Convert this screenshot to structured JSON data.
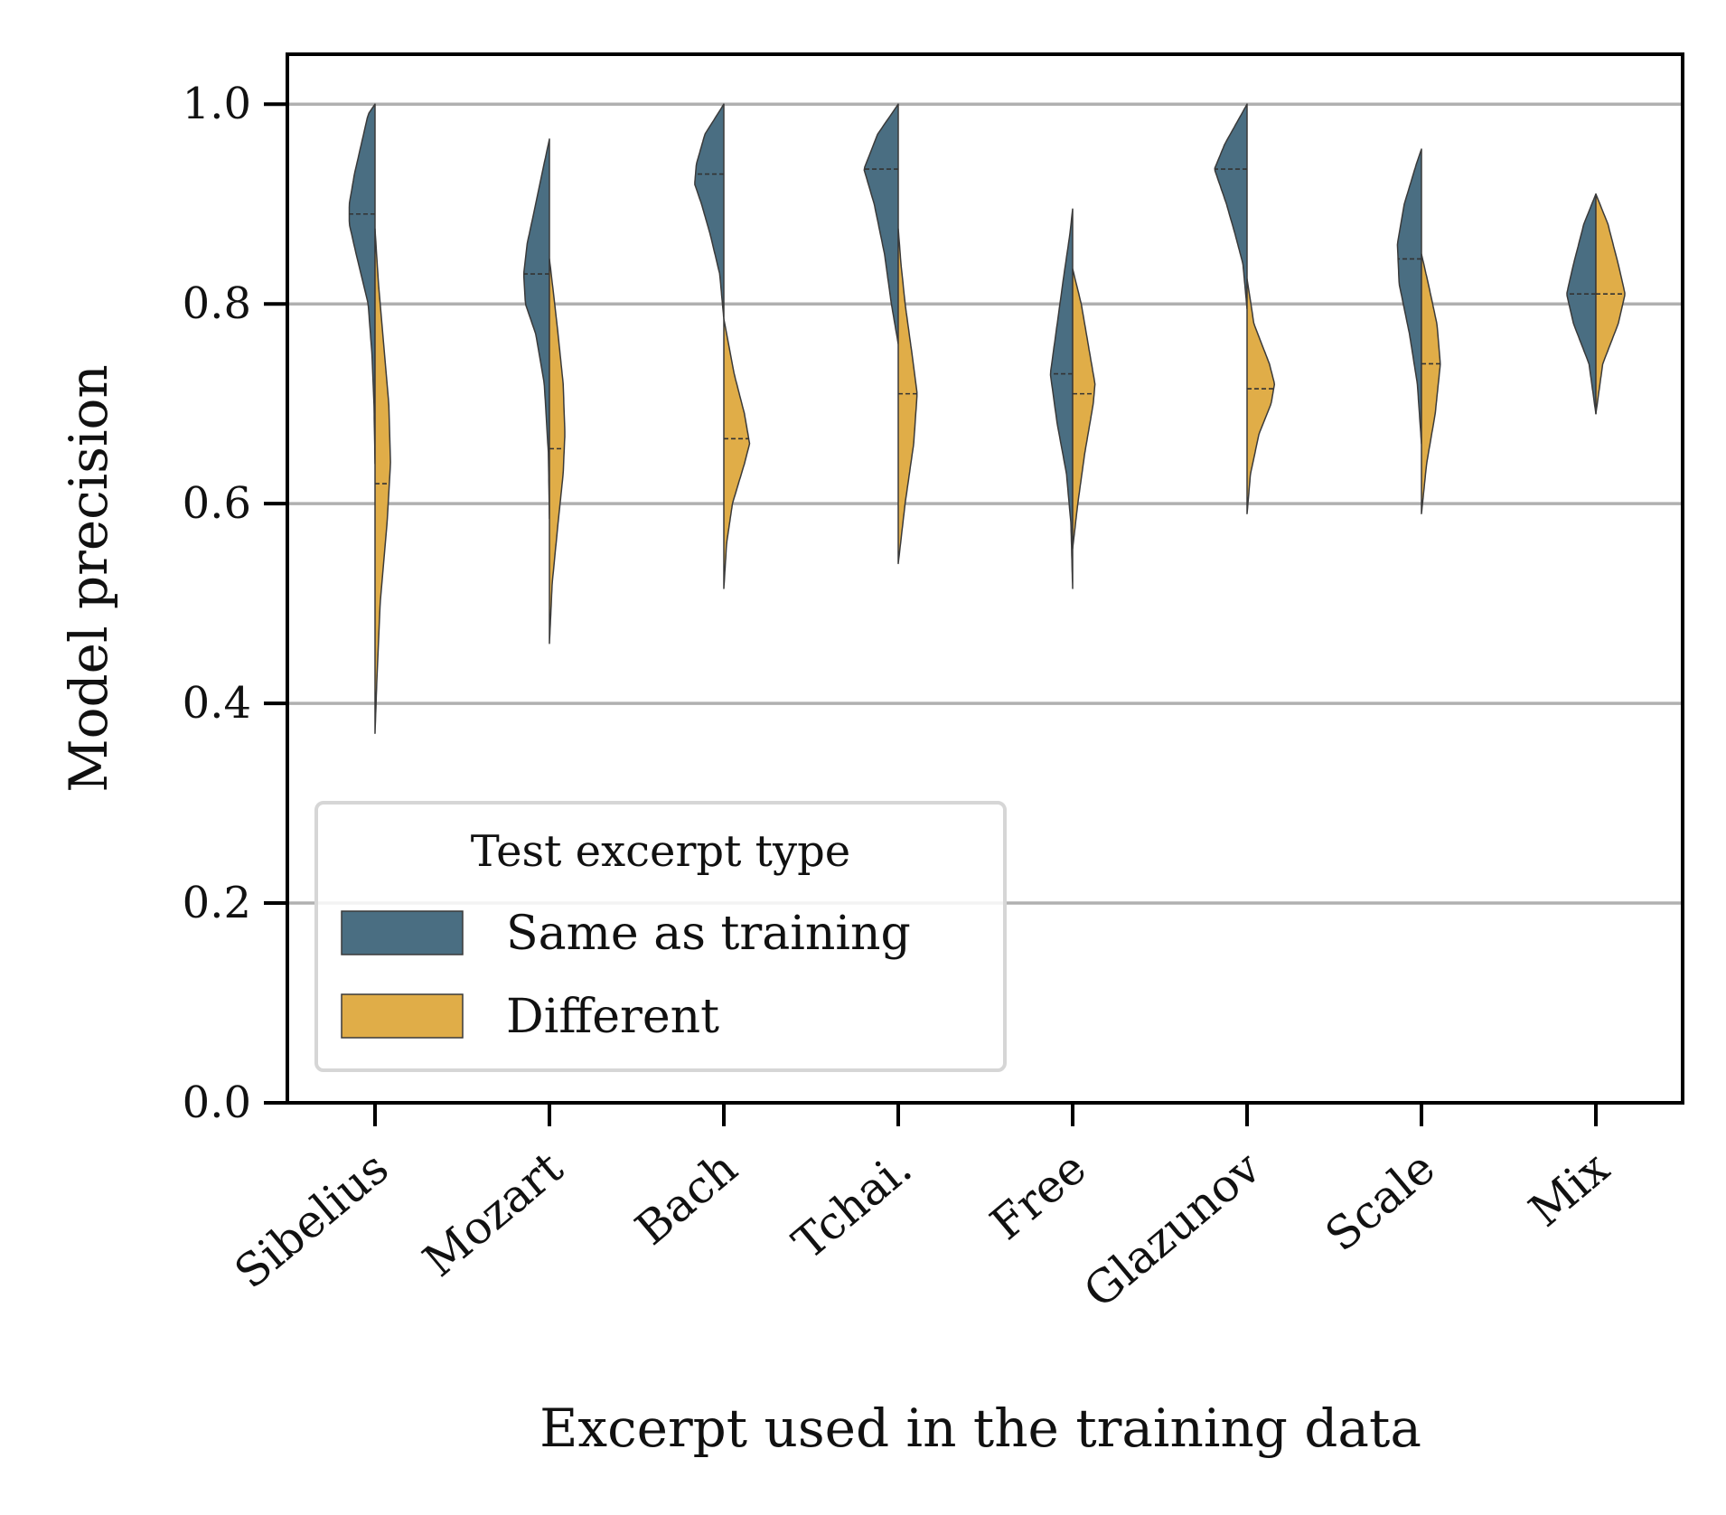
{
  "chart_data": {
    "type": "violin",
    "xlabel": "Excerpt used in the training data",
    "ylabel": "Model precision",
    "ylim": [
      0,
      1.05
    ],
    "yticks": [
      "0.0",
      "0.2",
      "0.4",
      "0.6",
      "0.8",
      "1.0"
    ],
    "grid": "horizontal",
    "legend": {
      "title": "Test excerpt type",
      "placement": "lower-left",
      "entries": [
        "Same as training",
        "Different"
      ]
    },
    "colors": {
      "Same as training": "#4a6e82",
      "Different": "#e0ad48",
      "grid": "#b0b0b0",
      "outline": "#3a3a3a"
    },
    "categories": [
      "Sibelius",
      "Mozart",
      "Bach",
      "Tchai.",
      "Free",
      "Glazunov",
      "Scale",
      "Mix"
    ],
    "series": [
      {
        "name": "Same as training",
        "side": "left",
        "median": [
          0.89,
          0.83,
          0.93,
          0.935,
          0.73,
          0.935,
          0.845,
          0.81
        ],
        "min": [
          0.64,
          0.585,
          0.785,
          0.76,
          0.515,
          0.795,
          0.66,
          0.69
        ],
        "max": [
          1.0,
          0.965,
          1.0,
          1.0,
          0.895,
          1.0,
          0.955,
          0.91
        ],
        "profiles": [
          [
            [
              0.64,
              0.0
            ],
            [
              0.7,
              0.03
            ],
            [
              0.75,
              0.09
            ],
            [
              0.8,
              0.2
            ],
            [
              0.85,
              0.55
            ],
            [
              0.88,
              0.75
            ],
            [
              0.9,
              0.75
            ],
            [
              0.93,
              0.6
            ],
            [
              0.96,
              0.4
            ],
            [
              0.99,
              0.2
            ],
            [
              1.0,
              0.0
            ]
          ],
          [
            [
              0.585,
              0.0
            ],
            [
              0.65,
              0.03
            ],
            [
              0.72,
              0.15
            ],
            [
              0.77,
              0.4
            ],
            [
              0.8,
              0.7
            ],
            [
              0.83,
              0.75
            ],
            [
              0.86,
              0.65
            ],
            [
              0.9,
              0.4
            ],
            [
              0.93,
              0.22
            ],
            [
              0.965,
              0.0
            ]
          ],
          [
            [
              0.785,
              0.0
            ],
            [
              0.83,
              0.12
            ],
            [
              0.87,
              0.4
            ],
            [
              0.9,
              0.65
            ],
            [
              0.92,
              0.85
            ],
            [
              0.94,
              0.8
            ],
            [
              0.97,
              0.55
            ],
            [
              1.0,
              0.0
            ]
          ],
          [
            [
              0.76,
              0.0
            ],
            [
              0.8,
              0.2
            ],
            [
              0.85,
              0.4
            ],
            [
              0.9,
              0.7
            ],
            [
              0.935,
              1.0
            ],
            [
              0.97,
              0.6
            ],
            [
              1.0,
              0.0
            ]
          ],
          [
            [
              0.515,
              0.0
            ],
            [
              0.58,
              0.05
            ],
            [
              0.63,
              0.18
            ],
            [
              0.68,
              0.45
            ],
            [
              0.73,
              0.65
            ],
            [
              0.78,
              0.45
            ],
            [
              0.83,
              0.25
            ],
            [
              0.87,
              0.08
            ],
            [
              0.895,
              0.0
            ]
          ],
          [
            [
              0.795,
              0.0
            ],
            [
              0.84,
              0.12
            ],
            [
              0.87,
              0.35
            ],
            [
              0.9,
              0.6
            ],
            [
              0.935,
              0.95
            ],
            [
              0.96,
              0.65
            ],
            [
              1.0,
              0.0
            ]
          ],
          [
            [
              0.66,
              0.0
            ],
            [
              0.72,
              0.12
            ],
            [
              0.77,
              0.35
            ],
            [
              0.82,
              0.65
            ],
            [
              0.86,
              0.7
            ],
            [
              0.9,
              0.5
            ],
            [
              0.94,
              0.15
            ],
            [
              0.955,
              0.0
            ]
          ],
          [
            [
              0.69,
              0.0
            ],
            [
              0.74,
              0.2
            ],
            [
              0.78,
              0.65
            ],
            [
              0.81,
              0.85
            ],
            [
              0.84,
              0.65
            ],
            [
              0.88,
              0.35
            ],
            [
              0.91,
              0.0
            ]
          ]
        ]
      },
      {
        "name": "Different",
        "side": "right",
        "median": [
          0.62,
          0.655,
          0.665,
          0.71,
          0.71,
          0.715,
          0.74,
          0.81
        ],
        "min": [
          0.37,
          0.46,
          0.515,
          0.54,
          0.555,
          0.59,
          0.59,
          0.69
        ],
        "max": [
          0.875,
          0.845,
          0.785,
          0.875,
          0.835,
          0.825,
          0.85,
          0.91
        ],
        "profiles": [
          [
            [
              0.37,
              0.0
            ],
            [
              0.42,
              0.05
            ],
            [
              0.5,
              0.15
            ],
            [
              0.58,
              0.35
            ],
            [
              0.64,
              0.45
            ],
            [
              0.7,
              0.4
            ],
            [
              0.76,
              0.25
            ],
            [
              0.82,
              0.1
            ],
            [
              0.875,
              0.0
            ]
          ],
          [
            [
              0.46,
              0.0
            ],
            [
              0.52,
              0.08
            ],
            [
              0.58,
              0.25
            ],
            [
              0.63,
              0.4
            ],
            [
              0.67,
              0.45
            ],
            [
              0.72,
              0.4
            ],
            [
              0.77,
              0.25
            ],
            [
              0.81,
              0.12
            ],
            [
              0.845,
              0.0
            ]
          ],
          [
            [
              0.515,
              0.0
            ],
            [
              0.56,
              0.08
            ],
            [
              0.6,
              0.25
            ],
            [
              0.64,
              0.6
            ],
            [
              0.66,
              0.75
            ],
            [
              0.69,
              0.6
            ],
            [
              0.73,
              0.3
            ],
            [
              0.785,
              0.0
            ]
          ],
          [
            [
              0.54,
              0.0
            ],
            [
              0.6,
              0.2
            ],
            [
              0.66,
              0.45
            ],
            [
              0.71,
              0.55
            ],
            [
              0.75,
              0.4
            ],
            [
              0.8,
              0.2
            ],
            [
              0.84,
              0.08
            ],
            [
              0.875,
              0.0
            ]
          ],
          [
            [
              0.555,
              0.0
            ],
            [
              0.6,
              0.15
            ],
            [
              0.65,
              0.35
            ],
            [
              0.7,
              0.6
            ],
            [
              0.72,
              0.65
            ],
            [
              0.75,
              0.5
            ],
            [
              0.8,
              0.25
            ],
            [
              0.835,
              0.0
            ]
          ],
          [
            [
              0.59,
              0.0
            ],
            [
              0.63,
              0.1
            ],
            [
              0.67,
              0.35
            ],
            [
              0.7,
              0.7
            ],
            [
              0.72,
              0.8
            ],
            [
              0.74,
              0.65
            ],
            [
              0.78,
              0.2
            ],
            [
              0.825,
              0.0
            ]
          ],
          [
            [
              0.59,
              0.0
            ],
            [
              0.64,
              0.15
            ],
            [
              0.69,
              0.4
            ],
            [
              0.74,
              0.55
            ],
            [
              0.78,
              0.45
            ],
            [
              0.82,
              0.2
            ],
            [
              0.85,
              0.0
            ]
          ],
          [
            [
              0.69,
              0.0
            ],
            [
              0.74,
              0.2
            ],
            [
              0.78,
              0.65
            ],
            [
              0.81,
              0.85
            ],
            [
              0.84,
              0.65
            ],
            [
              0.88,
              0.35
            ],
            [
              0.91,
              0.0
            ]
          ]
        ]
      }
    ]
  }
}
